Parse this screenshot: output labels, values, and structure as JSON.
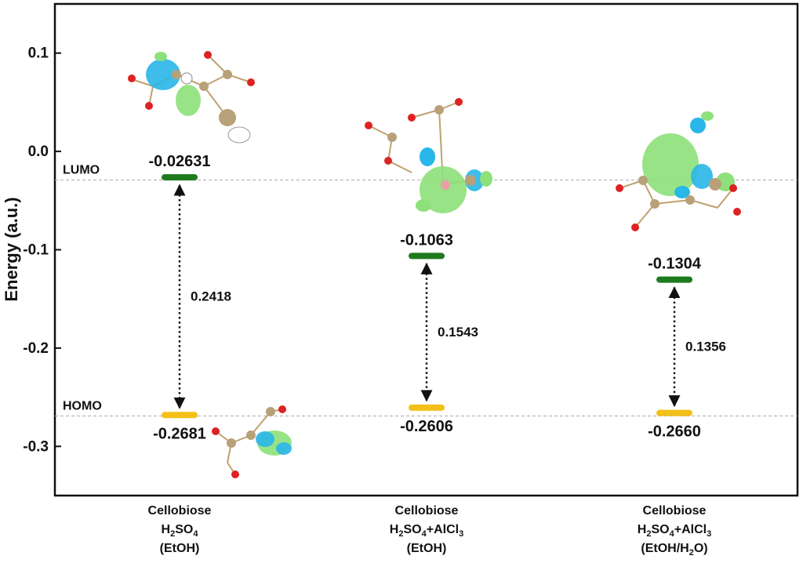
{
  "chart_data": {
    "type": "energy-level diagram",
    "ylabel": "Energy (a.u.)",
    "ylim": [
      -0.35,
      0.15
    ],
    "yticks": [
      0.1,
      0.0,
      -0.1,
      -0.2,
      -0.3
    ],
    "ytick_labels": [
      "0.1",
      "0.0",
      "-0.1",
      "-0.2",
      "-0.3"
    ],
    "reference_lines": [
      {
        "label": "LUMO",
        "y": -0.0291
      },
      {
        "label": "HOMO",
        "y": -0.2691
      }
    ],
    "categories": [
      {
        "lines": [
          [
            "Cellobiose"
          ],
          [
            "H",
            {
              "sub": "2"
            },
            "SO",
            {
              "sub": "4"
            }
          ],
          [
            "(EtOH)"
          ]
        ]
      },
      {
        "lines": [
          [
            "Cellobiose"
          ],
          [
            "H",
            {
              "sub": "2"
            },
            "SO",
            {
              "sub": "4"
            },
            "+AlCl",
            {
              "sub": "3"
            }
          ],
          [
            "(EtOH)"
          ]
        ]
      },
      {
        "lines": [
          [
            "Cellobiose"
          ],
          [
            "H",
            {
              "sub": "2"
            },
            "SO",
            {
              "sub": "4"
            },
            "+AlCl",
            {
              "sub": "3"
            }
          ],
          [
            "(EtOH/H",
            {
              "sub": "2"
            },
            "O)"
          ]
        ]
      }
    ],
    "series": [
      {
        "name": "LUMO",
        "color": "#1f7a1f",
        "values": [
          -0.02631,
          -0.1063,
          -0.1304
        ],
        "labels": [
          "-0.02631",
          "-0.1063",
          "-0.1304"
        ]
      },
      {
        "name": "HOMO",
        "color": "#f2c018",
        "values": [
          -0.2681,
          -0.2606,
          -0.266
        ],
        "labels": [
          "-0.2681",
          "-0.2606",
          "-0.2660"
        ]
      }
    ],
    "gaps": {
      "values": [
        0.2418,
        0.1543,
        0.1356
      ],
      "labels": [
        "0.2418",
        "0.1543",
        "0.1356"
      ]
    },
    "grid": false,
    "legend": "none"
  }
}
